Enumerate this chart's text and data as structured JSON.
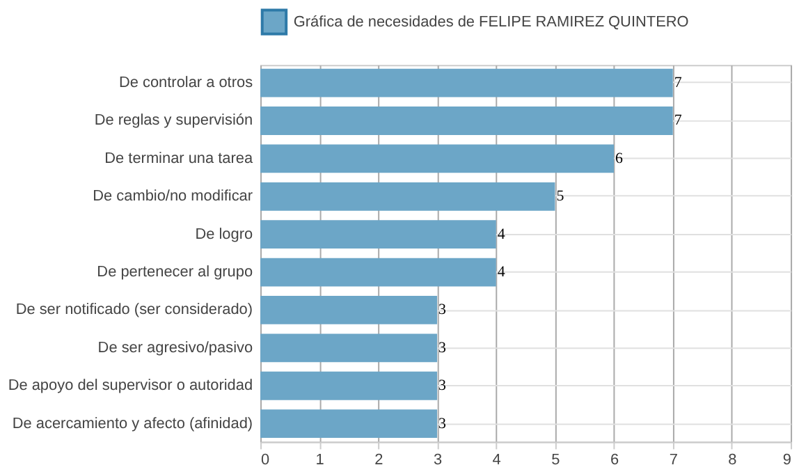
{
  "chart_data": {
    "type": "bar",
    "orientation": "horizontal",
    "categories": [
      "De controlar a otros",
      "De reglas y supervisión",
      "De terminar una tarea",
      "De cambio/no modificar",
      "De logro",
      "De pertenecer al grupo",
      "De ser notificado (ser considerado)",
      "De ser agresivo/pasivo",
      "De apoyo del supervisor o autoridad",
      "De acercamiento y afecto (afinidad)"
    ],
    "series": [
      {
        "name": "Gráfica de necesidades de FELIPE RAMIREZ QUINTERO",
        "color": "#6ca6c7",
        "values": [
          7,
          7,
          6,
          5,
          4,
          4,
          3,
          3,
          3,
          3
        ]
      }
    ],
    "xlim": [
      0,
      9
    ],
    "xticks": [
      0,
      1,
      2,
      3,
      4,
      5,
      6,
      7,
      8,
      9
    ],
    "grid": true,
    "legend": "top",
    "data_labels": true
  }
}
